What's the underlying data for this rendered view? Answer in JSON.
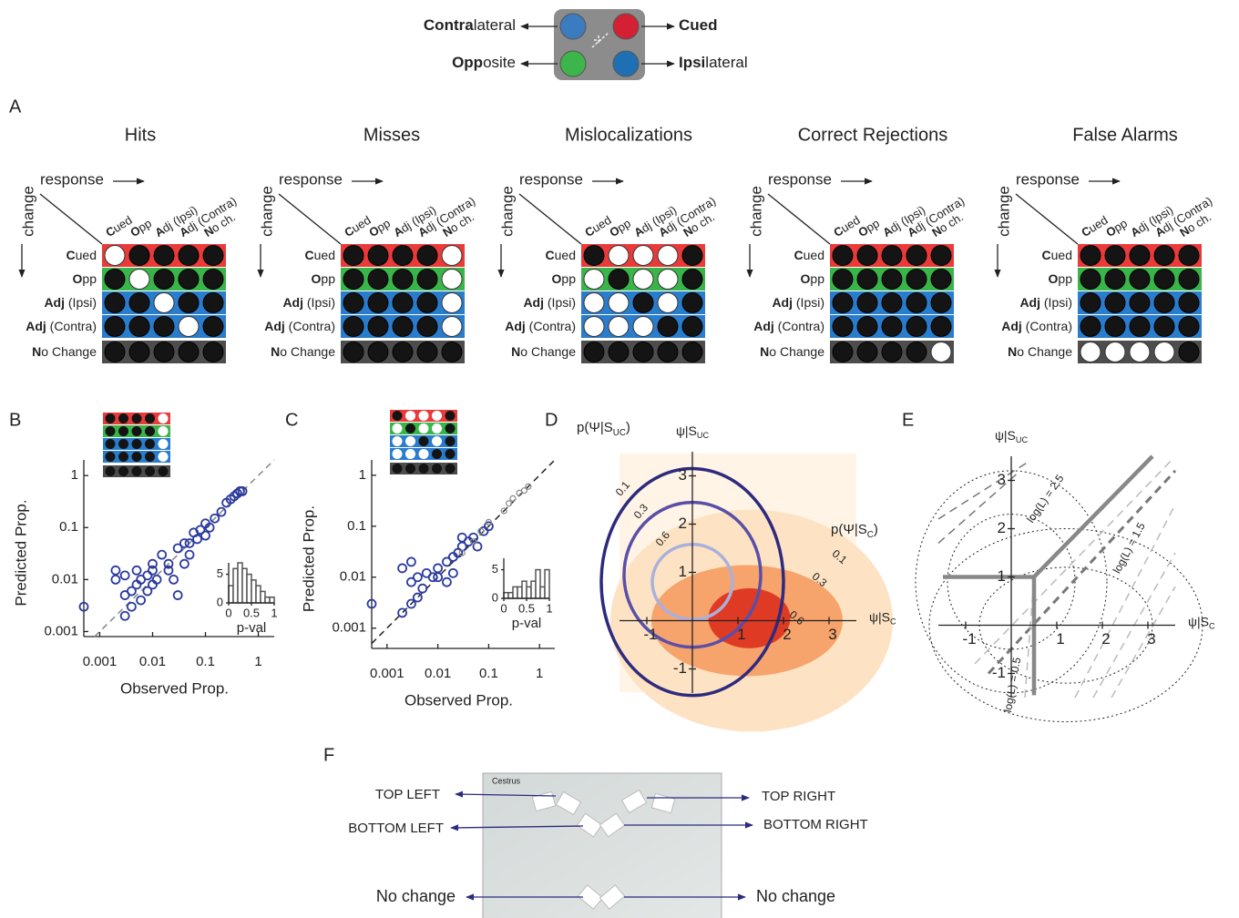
{
  "legend": {
    "items": [
      {
        "bold": "Contra",
        "rest": "lateral",
        "color": "#3b7bbf"
      },
      {
        "bold": "Cued",
        "color": "#d32033"
      },
      {
        "bold": "Opp",
        "rest": "osite",
        "color": "#3cb54a"
      },
      {
        "bold": "Ipsi",
        "rest": "lateral",
        "color": "#1f6fb5"
      }
    ]
  },
  "panel_a": {
    "label": "A",
    "response_label": "response",
    "change_label": "change",
    "columns": [
      {
        "bold": "C",
        "rest": "ued"
      },
      {
        "bold": "O",
        "rest": "pp"
      },
      {
        "bold": "A",
        "rest": "dj (Ipsi)"
      },
      {
        "bold": "A",
        "rest": "dj (Contra)"
      },
      {
        "bold": "N",
        "rest": "o ch."
      }
    ],
    "rows": [
      {
        "bold": "C",
        "rest": "ued",
        "color": "#ea3a3a",
        "text_color": "#e31e24"
      },
      {
        "bold": "O",
        "rest": "pp",
        "color": "#3ab54a",
        "text_color": "#2fae3c"
      },
      {
        "bold": "Adj",
        "rest": " (Ipsi)",
        "color": "#2a7ccc",
        "text_color": "#2b3990"
      },
      {
        "bold": "Adj",
        "rest": " (Contra)",
        "color": "#2a7ccc",
        "text_color": "#2b3990"
      },
      {
        "bold": "N",
        "rest": "o Change",
        "color": "#4d4d4d",
        "text_color": "#808080"
      }
    ],
    "panels": [
      {
        "title": "Hits",
        "cells": [
          [
            1,
            0,
            0,
            0,
            0
          ],
          [
            0,
            1,
            0,
            0,
            0
          ],
          [
            0,
            0,
            1,
            0,
            0
          ],
          [
            0,
            0,
            0,
            1,
            0
          ],
          [
            0,
            0,
            0,
            0,
            0
          ]
        ]
      },
      {
        "title": "Misses",
        "cells": [
          [
            0,
            0,
            0,
            0,
            1
          ],
          [
            0,
            0,
            0,
            0,
            1
          ],
          [
            0,
            0,
            0,
            0,
            1
          ],
          [
            0,
            0,
            0,
            0,
            1
          ],
          [
            0,
            0,
            0,
            0,
            0
          ]
        ]
      },
      {
        "title": "Mislocalizations",
        "cells": [
          [
            0,
            1,
            1,
            1,
            0
          ],
          [
            1,
            0,
            1,
            1,
            0
          ],
          [
            1,
            1,
            0,
            1,
            0
          ],
          [
            1,
            1,
            1,
            0,
            0
          ],
          [
            0,
            0,
            0,
            0,
            0
          ]
        ]
      },
      {
        "title": "Correct Rejections",
        "cells": [
          [
            0,
            0,
            0,
            0,
            0
          ],
          [
            0,
            0,
            0,
            0,
            0
          ],
          [
            0,
            0,
            0,
            0,
            0
          ],
          [
            0,
            0,
            0,
            0,
            0
          ],
          [
            0,
            0,
            0,
            0,
            1
          ]
        ]
      },
      {
        "title": "False Alarms",
        "cells": [
          [
            0,
            0,
            0,
            0,
            0
          ],
          [
            0,
            0,
            0,
            0,
            0
          ],
          [
            0,
            0,
            0,
            0,
            0
          ],
          [
            0,
            0,
            0,
            0,
            0
          ],
          [
            1,
            1,
            1,
            1,
            0
          ]
        ]
      }
    ]
  },
  "panel_b": {
    "label": "B",
    "chart": {
      "type": "scatter",
      "log_scale": true,
      "xlabel": "Observed Prop.",
      "ylabel": "Predicted Prop.",
      "xlim": [
        0.0005,
        2
      ],
      "ylim": [
        0.0008,
        2
      ],
      "xticks": [
        0.001,
        0.01,
        0.1,
        1
      ],
      "yticks": [
        0.001,
        0.01,
        0.1,
        1
      ],
      "series": [
        {
          "color": "#2b3a9e",
          "x": [
            0.3,
            0.35,
            0.4,
            0.45,
            0.5,
            0.25,
            0.1,
            0.12,
            0.08,
            0.06,
            0.05,
            0.07,
            0.04,
            0.03,
            0.1,
            0.15,
            0.2,
            0.02,
            0.015,
            0.01,
            0.008,
            0.006,
            0.005,
            0.004,
            0.003,
            0.003,
            0.004,
            0.002,
            0.002,
            0.003,
            0.005,
            0.01,
            0.012,
            0.02,
            0.025,
            0.03,
            0.04,
            0.05,
            0.006,
            0.008,
            0.01,
            0.0005
          ],
          "y": [
            0.35,
            0.4,
            0.45,
            0.5,
            0.5,
            0.3,
            0.12,
            0.1,
            0.09,
            0.08,
            0.05,
            0.06,
            0.05,
            0.04,
            0.07,
            0.15,
            0.2,
            0.02,
            0.03,
            0.015,
            0.012,
            0.01,
            0.008,
            0.006,
            0.005,
            0.002,
            0.003,
            0.015,
            0.01,
            0.012,
            0.015,
            0.02,
            0.01,
            0.015,
            0.01,
            0.005,
            0.02,
            0.03,
            0.004,
            0.006,
            0.008,
            0.003
          ]
        }
      ]
    },
    "histogram": {
      "type": "histogram",
      "xlabel": "p-val",
      "bins": [
        0,
        0.1,
        0.2,
        0.3,
        0.4,
        0.5,
        0.6,
        0.7,
        0.8,
        0.9,
        1
      ],
      "counts": [
        3,
        6,
        7,
        6,
        5,
        4,
        3,
        2,
        1,
        1
      ],
      "xticks": [
        0,
        0.5,
        1
      ],
      "yticks": [
        0,
        5
      ],
      "ylim": [
        0,
        7
      ],
      "color": "#555"
    }
  },
  "panel_c": {
    "label": "C",
    "chart": {
      "type": "scatter",
      "log_scale": true,
      "xlabel": "Observed Prop.",
      "ylabel": "Predicted Prop.",
      "xlim": [
        0.0005,
        2
      ],
      "ylim": [
        0.0004,
        2
      ],
      "xticks": [
        0.001,
        0.01,
        0.1,
        1
      ],
      "yticks": [
        0.001,
        0.01,
        0.1,
        1
      ],
      "series": [
        {
          "color": "#2b3a9e",
          "x": [
            0.0005,
            0.002,
            0.003,
            0.004,
            0.005,
            0.003,
            0.004,
            0.006,
            0.002,
            0.003,
            0.008,
            0.01,
            0.01,
            0.015,
            0.02,
            0.02,
            0.025,
            0.03,
            0.04,
            0.05,
            0.06,
            0.08,
            0.1,
            0.03,
            0.015
          ],
          "y": [
            0.003,
            0.002,
            0.003,
            0.004,
            0.006,
            0.008,
            0.01,
            0.012,
            0.015,
            0.02,
            0.01,
            0.01,
            0.015,
            0.02,
            0.025,
            0.012,
            0.03,
            0.04,
            0.05,
            0.06,
            0.04,
            0.08,
            0.1,
            0.06,
            0.008
          ]
        },
        {
          "color": "#888888",
          "x": [
            0.2,
            0.25,
            0.3,
            0.4,
            0.5,
            0.6,
            0.03,
            0.05,
            0.1,
            0.07
          ],
          "y": [
            0.2,
            0.28,
            0.35,
            0.45,
            0.5,
            0.6,
            0.03,
            0.05,
            0.12,
            0.08
          ]
        }
      ]
    },
    "histogram": {
      "type": "histogram",
      "xlabel": "p-val",
      "bins": [
        0,
        0.1,
        0.2,
        0.3,
        0.4,
        0.5,
        0.6,
        0.7,
        0.8,
        0.9,
        1
      ],
      "counts": [
        1,
        1,
        2,
        2,
        3,
        2,
        3,
        5,
        2,
        5
      ],
      "xticks": [
        0,
        0.5,
        1
      ],
      "yticks": [
        0,
        5
      ],
      "ylim": [
        0,
        7
      ],
      "color": "#555"
    }
  },
  "panel_d": {
    "label": "D",
    "xlabel": {
      "main": "ψ|S",
      "sub": "C"
    },
    "ylabel": {
      "main": "ψ|S",
      "sub": "UC"
    },
    "xlim": [
      -1.6,
      3.6
    ],
    "ylim": [
      -1.5,
      3.5
    ],
    "xticks": [
      -1,
      1,
      2,
      3
    ],
    "yticks": [
      -1,
      1,
      2,
      3
    ],
    "distributions": [
      {
        "label": {
          "main": "p(Ψ|S",
          "sub": "UC",
          "end": ")"
        },
        "levels": [
          0.1,
          0.3,
          0.6
        ],
        "colors": [
          "#2e2a7e",
          "#5a4fa8",
          "#aab0dc"
        ]
      },
      {
        "label": {
          "main": "p(Ψ|S",
          "sub": "C",
          "end": ")"
        },
        "levels": [
          0.1,
          0.3,
          0.6
        ],
        "colors": [
          "#fde3c4",
          "#f6a36c",
          "#df3b24"
        ]
      }
    ]
  },
  "panel_e": {
    "label": "E",
    "xlabel": {
      "main": "ψ|S",
      "sub": "C"
    },
    "ylabel": {
      "main": "ψ|S",
      "sub": "UC"
    },
    "xlim": [
      -1.6,
      3.6
    ],
    "ylim": [
      -1.5,
      3.5
    ],
    "xticks": [
      -1,
      1,
      2,
      3
    ],
    "yticks": [
      -1,
      1,
      2,
      3
    ],
    "boundary_labels": [
      "log(L) = 2.5",
      "log(L) = 1.5",
      "log(L) = 0.5"
    ]
  },
  "panel_f": {
    "label": "F",
    "screen_text": "Cestrus",
    "left": [
      "TOP LEFT",
      "BOTTOM LEFT",
      "No change"
    ],
    "right": [
      "TOP RIGHT",
      "BOTTOM RIGHT",
      "No change"
    ]
  }
}
